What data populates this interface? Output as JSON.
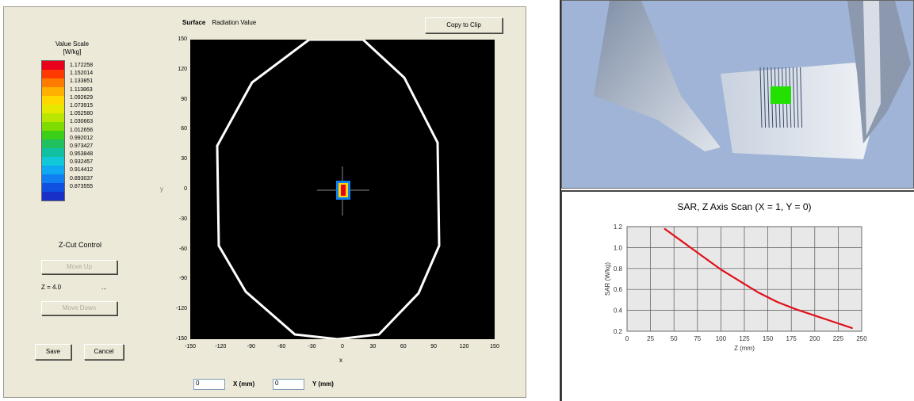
{
  "left_panel": {
    "legend": {
      "title_line1": "Value Scale",
      "title_line2": "[W/kg]",
      "values": [
        "1.172258",
        "1.152014",
        "1.133851",
        "1.113863",
        "1.092629",
        "1.073915",
        "1.052580",
        "1.030663",
        "1.012656",
        "0.992012",
        "0.973427",
        "0.953848",
        "0.932457",
        "0.914412",
        "0.893037",
        "0.873555"
      ],
      "colors": [
        "#e8001c",
        "#ff3a00",
        "#ff7a00",
        "#ffb000",
        "#ffd800",
        "#e6e800",
        "#b8e600",
        "#7fdc00",
        "#3ccf1a",
        "#20c060",
        "#10c0a0",
        "#10c8d8",
        "#10a8f0",
        "#1080f0",
        "#1050e0",
        "#1830c8"
      ]
    },
    "zcut": {
      "title": "Z-Cut Control",
      "btn_up": "Move Up",
      "value": "Z = 4.0",
      "dots": "...",
      "btn_down": "Move Down"
    },
    "buttons": {
      "save": "Save",
      "cancel": "Cancel"
    },
    "plot": {
      "title_bold": "Surface",
      "title_rest": "Radiation Value",
      "copy_button": "Copy to Clip",
      "y_ticks": [
        "150",
        "120",
        "90",
        "60",
        "30",
        "0",
        "-30",
        "-60",
        "-90",
        "-120",
        "-150"
      ],
      "x_ticks": [
        "-150",
        "-120",
        "-90",
        "-60",
        "-30",
        "0",
        "30",
        "60",
        "90",
        "120",
        "150"
      ],
      "x_axis_label": "x",
      "side_label": "y",
      "x_field_value": "0",
      "y_field_value": "0",
      "x_field_label": "X (mm)",
      "y_field_label": "Y (mm)"
    }
  },
  "view3d": {
    "colors": {
      "background": "#9fb4d6",
      "phantom": "#e7ebf0",
      "grid": "#3a4a6a",
      "hotspot": "#22e000"
    }
  },
  "chart_data": {
    "type": "line",
    "title": "SAR, Z Axis Scan (X = 1, Y = 0)",
    "xlabel": "Z (mm)",
    "ylabel": "SAR (W/kg)",
    "x_ticks": [
      "0",
      "25",
      "50",
      "75",
      "100",
      "125",
      "150",
      "175",
      "200",
      "225",
      "250"
    ],
    "y_ticks": [
      "0.2",
      "0.4",
      "0.6",
      "0.8",
      "1.0",
      "1.2"
    ],
    "xlim": [
      0,
      250
    ],
    "ylim": [
      0.2,
      1.2
    ],
    "grid": true,
    "series": [
      {
        "values": [
          {
            "x": 40,
            "y": 1.18
          },
          {
            "x": 60,
            "y": 1.05
          },
          {
            "x": 80,
            "y": 0.92
          },
          {
            "x": 100,
            "y": 0.79
          },
          {
            "x": 120,
            "y": 0.68
          },
          {
            "x": 140,
            "y": 0.57
          },
          {
            "x": 160,
            "y": 0.48
          },
          {
            "x": 180,
            "y": 0.41
          },
          {
            "x": 200,
            "y": 0.35
          },
          {
            "x": 220,
            "y": 0.29
          },
          {
            "x": 240,
            "y": 0.23
          }
        ],
        "color": "#e0101c"
      }
    ]
  }
}
